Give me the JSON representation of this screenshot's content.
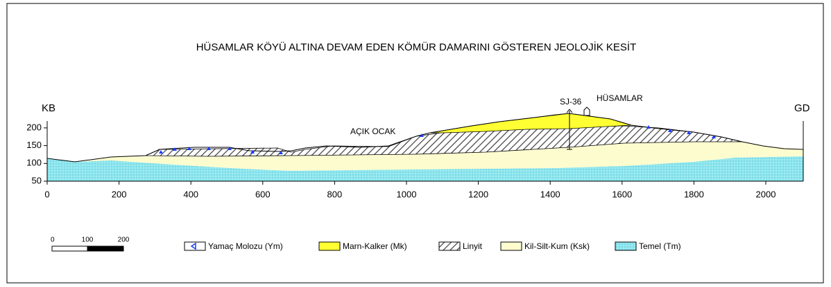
{
  "title": "HÜSAMLAR KÖYÜ ALTINA DEVAM EDEN KÖMÜR DAMARINI GÖSTEREN JEOLOJİK KESİT",
  "left_end": "KB",
  "right_end": "GD",
  "xticks": [
    0,
    200,
    400,
    600,
    800,
    1000,
    1200,
    1400,
    1600,
    1800,
    2000
  ],
  "yticks": [
    50,
    100,
    150,
    200
  ],
  "annotations": {
    "borehole": "SJ-36",
    "village": "HÜSAMLAR",
    "mine": "AÇIK OCAK"
  },
  "scale_bar": [
    "0",
    "100",
    "200"
  ],
  "legend": [
    "Yamaç Molozu (Ym)",
    "Marn-Kalker (Mk)",
    "Linyit",
    "Kil-Silt-Kum (Ksk)",
    "Temel (Tm)"
  ]
}
